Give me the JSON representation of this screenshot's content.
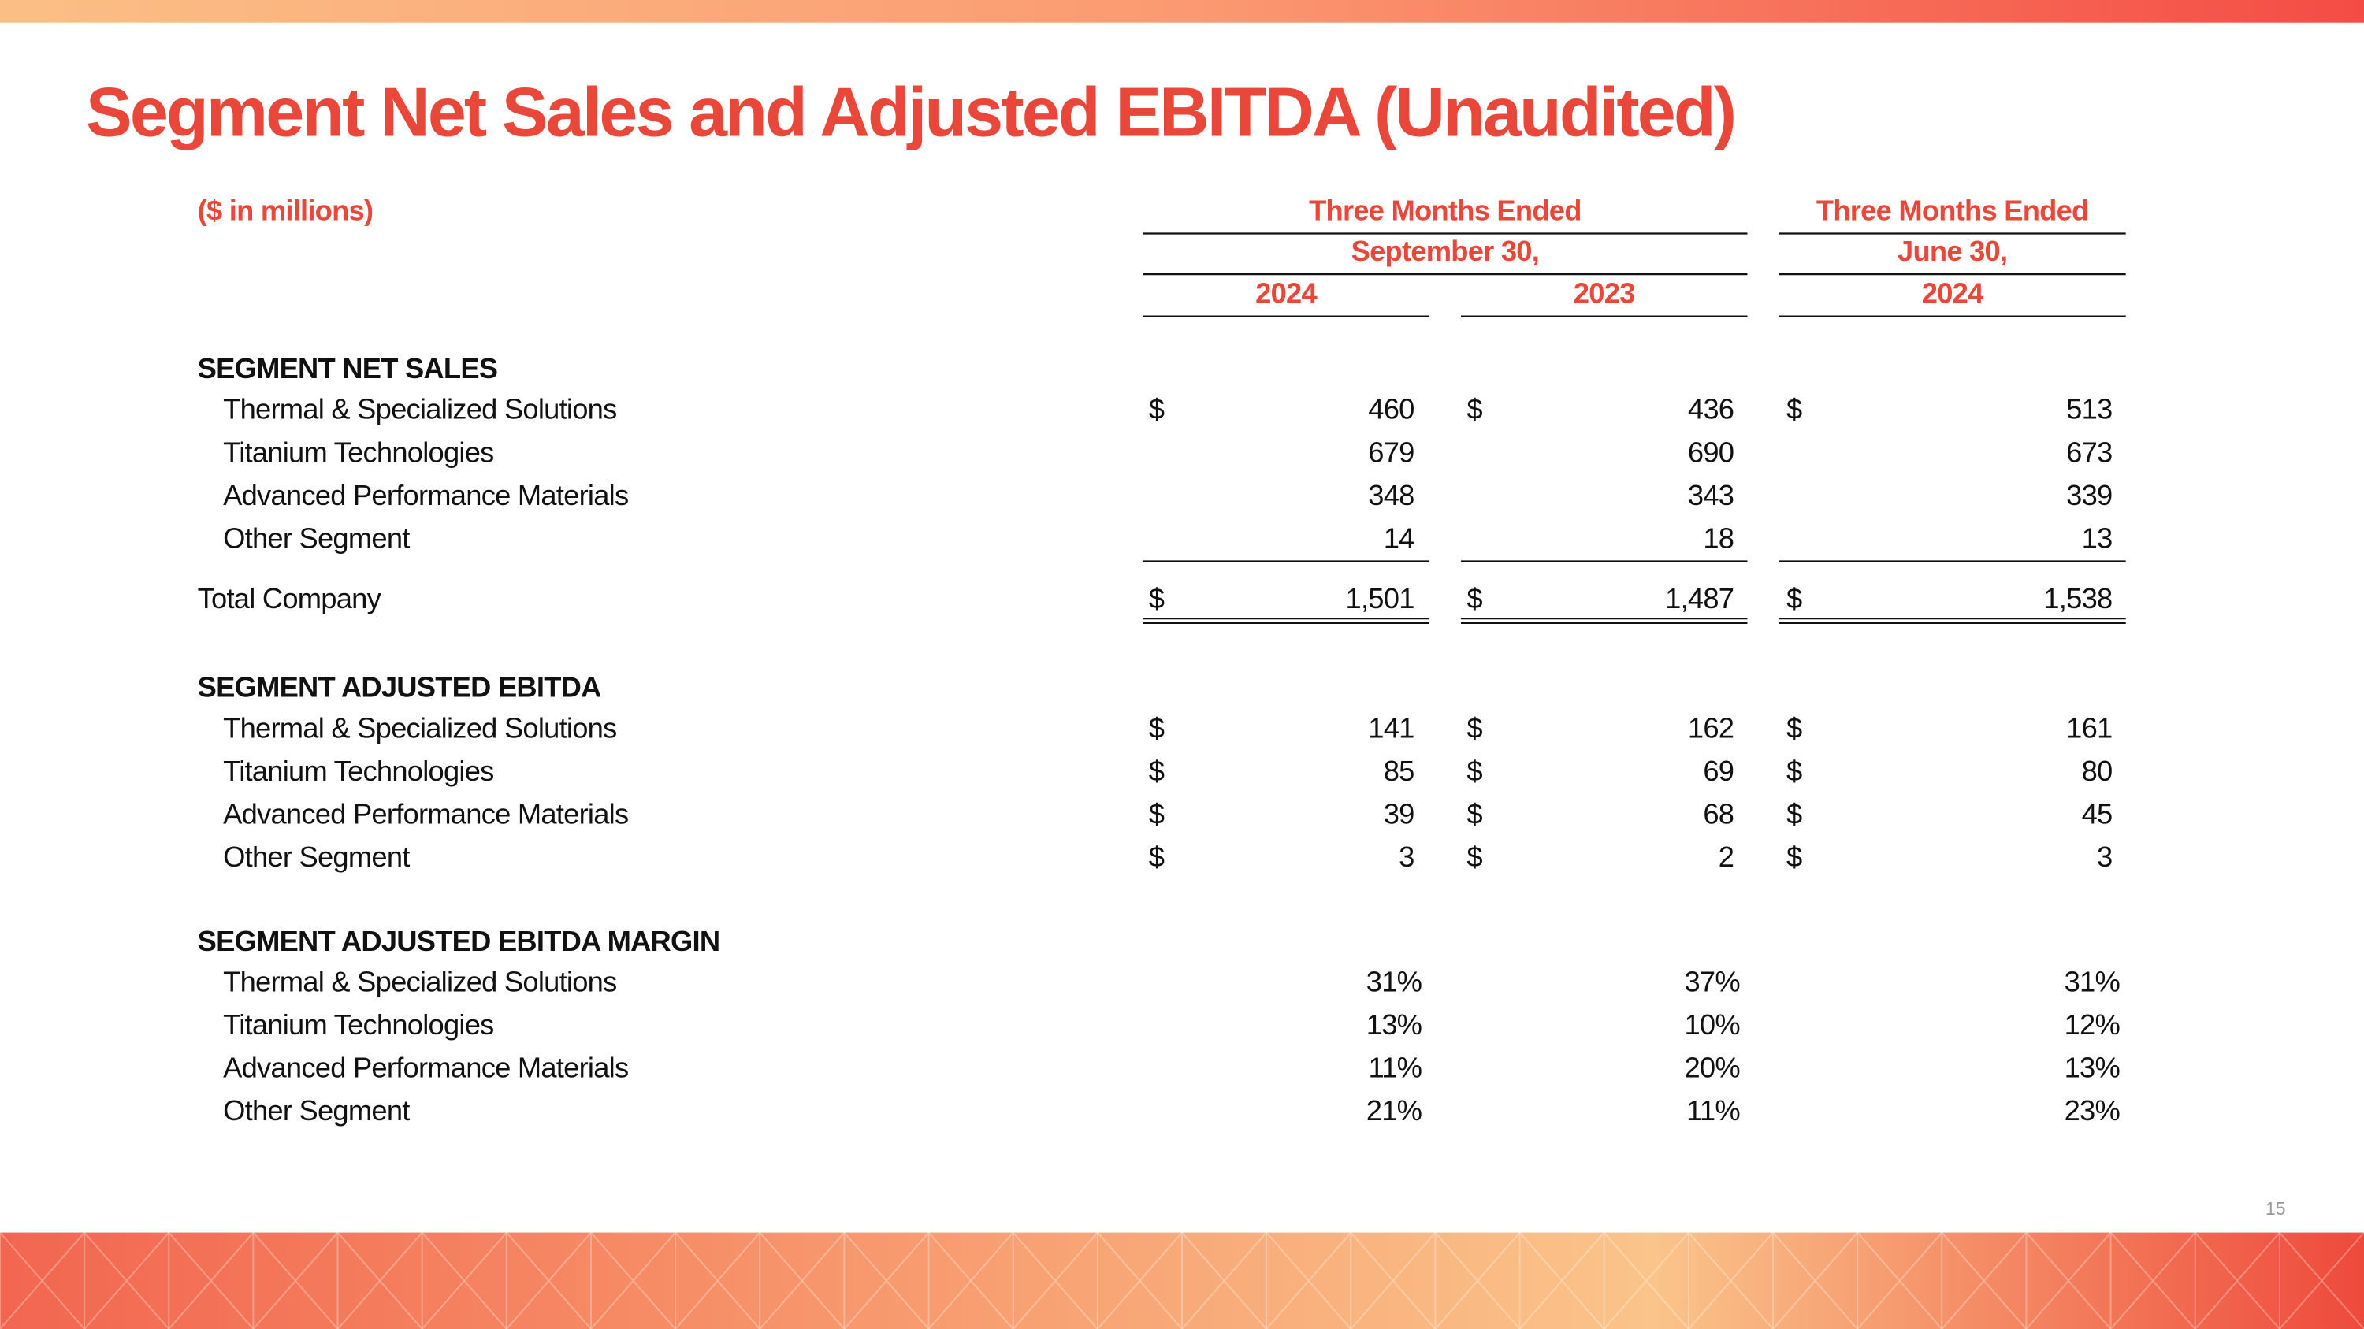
{
  "title": "Segment Net Sales and Adjusted EBITDA (Unaudited)",
  "unit_note": "($ in millions)",
  "headers": {
    "groups": [
      {
        "line1": "Three Months Ended",
        "line2": "September 30,"
      },
      {
        "line1": "Three Months Ended",
        "line2": "June 30,"
      }
    ],
    "columns": [
      "2024",
      "2023",
      "2024"
    ]
  },
  "currency": "$",
  "sections": [
    {
      "heading": "SEGMENT NET SALES",
      "rows": [
        {
          "label": "Thermal & Specialized Solutions",
          "values": [
            "460",
            "436",
            "513"
          ],
          "show_currency": true
        },
        {
          "label": "Titanium Technologies",
          "values": [
            "679",
            "690",
            "673"
          ],
          "show_currency": false
        },
        {
          "label": "Advanced Performance Materials",
          "values": [
            "348",
            "343",
            "339"
          ],
          "show_currency": false
        },
        {
          "label": "Other Segment",
          "values": [
            "14",
            "18",
            "13"
          ],
          "show_currency": false
        }
      ],
      "total": {
        "label": "Total Company",
        "values": [
          "1,501",
          "1,487",
          "1,538"
        ],
        "show_currency": true
      }
    },
    {
      "heading": "SEGMENT ADJUSTED EBITDA",
      "rows": [
        {
          "label": "Thermal & Specialized Solutions",
          "values": [
            "141",
            "162",
            "161"
          ],
          "show_currency": true
        },
        {
          "label": "Titanium Technologies",
          "values": [
            "85",
            "69",
            "80"
          ],
          "show_currency": true
        },
        {
          "label": "Advanced Performance Materials",
          "values": [
            "39",
            "68",
            "45"
          ],
          "show_currency": true
        },
        {
          "label": "Other Segment",
          "values": [
            "3",
            "2",
            "3"
          ],
          "show_currency": true
        }
      ]
    },
    {
      "heading": "SEGMENT ADJUSTED EBITDA MARGIN",
      "rows": [
        {
          "label": "Thermal & Specialized Solutions",
          "values": [
            "31%",
            "37%",
            "31%"
          ],
          "show_currency": false
        },
        {
          "label": "Titanium Technologies",
          "values": [
            "13%",
            "10%",
            "12%"
          ],
          "show_currency": false
        },
        {
          "label": "Advanced Performance Materials",
          "values": [
            "11%",
            "20%",
            "13%"
          ],
          "show_currency": false
        },
        {
          "label": "Other Segment",
          "values": [
            "21%",
            "11%",
            "23%"
          ],
          "show_currency": false
        }
      ]
    }
  ],
  "page_number": "15"
}
